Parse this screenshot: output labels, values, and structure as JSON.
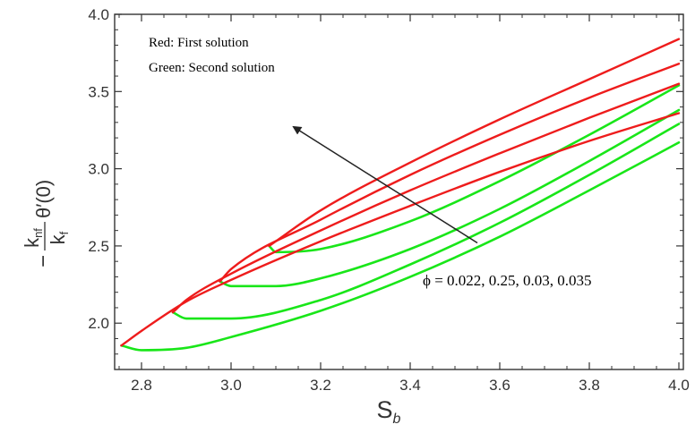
{
  "chart_data": {
    "type": "line",
    "xlabel": "S",
    "xlabel_sub": "b",
    "ylabel": {
      "prefix": "−",
      "numerator": "k",
      "numerator_sub": "nf",
      "denominator": "k",
      "denominator_sub": "f",
      "suffix": "θ′(0)"
    },
    "xlim": [
      2.74,
      4.01
    ],
    "ylim": [
      1.7,
      4.0
    ],
    "xticks": [
      2.8,
      3.0,
      3.2,
      3.4,
      3.6,
      3.8,
      4.0
    ],
    "xtick_labels": [
      "2.8",
      "3.0",
      "3.2",
      "3.4",
      "3.6",
      "3.8",
      "4.0"
    ],
    "yticks": [
      2.0,
      2.5,
      3.0,
      3.5,
      4.0
    ],
    "ytick_labels": [
      "2.0",
      "2.5",
      "3.0",
      "3.5",
      "4.0"
    ],
    "legend": [
      "Red: First solution",
      "Green: Second solution"
    ],
    "legend_position": "top-left",
    "annotation": {
      "text": "ϕ = 0.022, 0.25, 0.03, 0.035",
      "arrow_from": [
        3.55,
        2.52
      ],
      "arrow_to": [
        3.14,
        3.27
      ]
    },
    "colors": {
      "first": "#ee1c1c",
      "second": "#19e619",
      "axis": "#333333",
      "arrow": "#222222"
    },
    "series": [
      {
        "phi": "0.022",
        "turning_point": [
          2.755,
          1.855
        ],
        "first": {
          "x": [
            2.755,
            2.8,
            2.9,
            3.0,
            3.2,
            3.4,
            3.6,
            3.8,
            4.0
          ],
          "y": [
            1.855,
            1.95,
            2.14,
            2.28,
            2.53,
            2.76,
            2.98,
            3.18,
            3.36
          ]
        },
        "second": {
          "x": [
            2.755,
            2.8,
            2.9,
            3.0,
            3.2,
            3.4,
            3.6,
            3.8,
            4.0
          ],
          "y": [
            1.855,
            1.825,
            1.84,
            1.91,
            2.08,
            2.3,
            2.56,
            2.86,
            3.17
          ]
        }
      },
      {
        "phi": "0.25",
        "turning_point": [
          2.87,
          2.07
        ],
        "first": {
          "x": [
            2.87,
            2.9,
            3.0,
            3.2,
            3.4,
            3.6,
            3.8,
            4.0
          ],
          "y": [
            2.07,
            2.15,
            2.32,
            2.6,
            2.86,
            3.1,
            3.33,
            3.55
          ]
        },
        "second": {
          "x": [
            2.87,
            2.9,
            3.0,
            3.2,
            3.4,
            3.6,
            3.8,
            4.0
          ],
          "y": [
            2.07,
            2.03,
            2.03,
            2.15,
            2.38,
            2.65,
            2.96,
            3.29
          ]
        }
      },
      {
        "phi": "0.03",
        "turning_point": [
          2.975,
          2.27
        ],
        "first": {
          "x": [
            2.975,
            3.0,
            3.2,
            3.4,
            3.6,
            3.8,
            4.0
          ],
          "y": [
            2.27,
            2.35,
            2.67,
            2.96,
            3.22,
            3.46,
            3.68
          ]
        },
        "second": {
          "x": [
            2.975,
            3.0,
            3.1,
            3.2,
            3.4,
            3.6,
            3.8,
            4.0
          ],
          "y": [
            2.27,
            2.24,
            2.24,
            2.29,
            2.48,
            2.74,
            3.05,
            3.38
          ]
        }
      },
      {
        "phi": "0.035",
        "turning_point": [
          3.085,
          2.5
        ],
        "first": {
          "x": [
            3.085,
            3.2,
            3.4,
            3.6,
            3.8,
            4.0
          ],
          "y": [
            2.5,
            2.73,
            3.04,
            3.32,
            3.58,
            3.84
          ]
        },
        "second": {
          "x": [
            3.085,
            3.1,
            3.2,
            3.4,
            3.6,
            3.8,
            4.0
          ],
          "y": [
            2.5,
            2.46,
            2.48,
            2.66,
            2.92,
            3.22,
            3.54
          ]
        }
      }
    ]
  }
}
